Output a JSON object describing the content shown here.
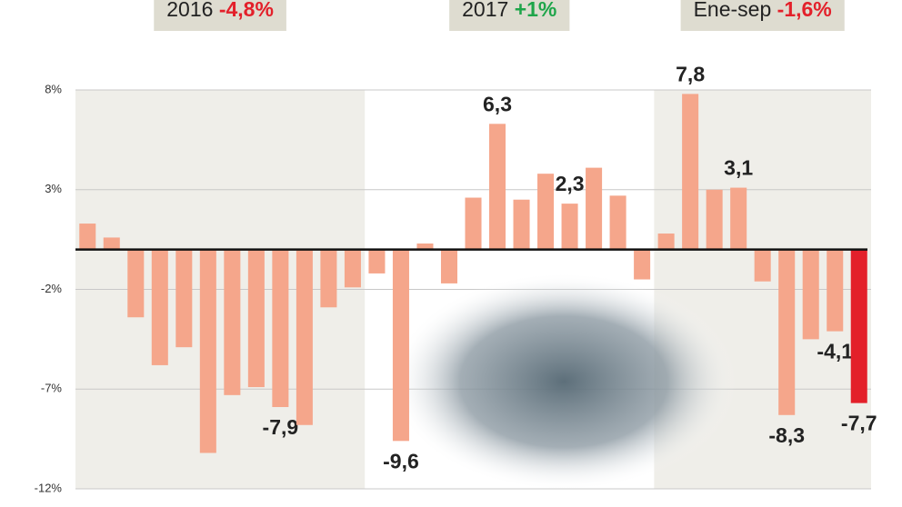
{
  "chart_data": {
    "type": "bar",
    "periods": [
      {
        "label": "2016",
        "change": "-4,8%",
        "change_color": "#e3202a",
        "months": 12,
        "shaded": true
      },
      {
        "label": "2017",
        "change": "+1%",
        "change_color": "#1fa54a",
        "months": 12,
        "shaded": false
      },
      {
        "label": "Ene-sep",
        "change": "-1,6%",
        "change_color": "#e3202a",
        "months": 9,
        "shaded": true
      }
    ],
    "categories": [
      null,
      null,
      null,
      null,
      null,
      null,
      null,
      null,
      null,
      null,
      null,
      null,
      null,
      null,
      null,
      null,
      null,
      null,
      null,
      null,
      null,
      null,
      null,
      null,
      null,
      null,
      null,
      null,
      null,
      null,
      null,
      null,
      null
    ],
    "values": [
      1.3,
      0.6,
      -3.4,
      -5.8,
      -4.9,
      -10.2,
      -7.3,
      -6.9,
      -7.9,
      -8.8,
      -2.9,
      -1.9,
      -1.2,
      -9.6,
      0.3,
      -1.7,
      2.6,
      6.3,
      2.5,
      3.8,
      2.3,
      4.1,
      2.7,
      -1.5,
      0.8,
      7.8,
      3.0,
      3.1,
      -1.6,
      -8.3,
      -4.5,
      -4.1,
      -7.7
    ],
    "value_labels": [
      null,
      null,
      null,
      null,
      null,
      null,
      null,
      null,
      "-7,9",
      null,
      null,
      null,
      null,
      "-9,6",
      null,
      null,
      null,
      "6,3",
      null,
      null,
      "2,3",
      null,
      null,
      null,
      null,
      "7,8",
      null,
      "3,1",
      null,
      "-8,3",
      null,
      "-4,1",
      "-7,7"
    ],
    "color": "#f5a68b",
    "highlight": {
      "index": 32,
      "color": "#e3202a"
    },
    "ylim": [
      -12,
      8
    ],
    "yticks": [
      {
        "value": 8,
        "label": "8%"
      },
      {
        "value": 3,
        "label": "3%"
      },
      {
        "value": -2,
        "label": "-2%"
      },
      {
        "value": -7,
        "label": "-7%"
      },
      {
        "value": -12,
        "label": "-12%"
      }
    ],
    "grid": true
  }
}
